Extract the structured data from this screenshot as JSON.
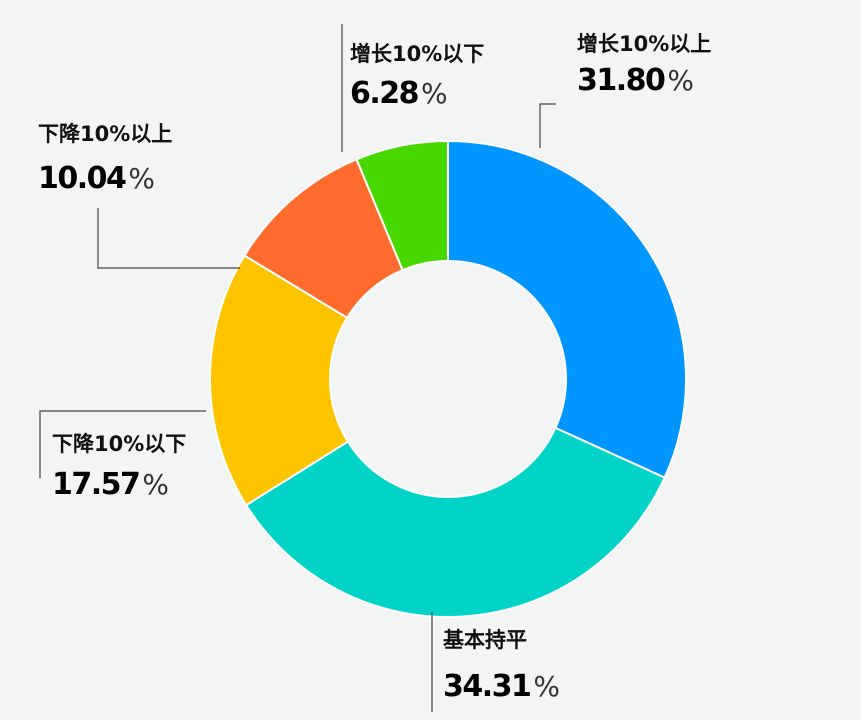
{
  "chart_data": {
    "type": "pie",
    "donut": true,
    "legend": "none",
    "slices": [
      {
        "label": "增长10%以上",
        "value": 31.8,
        "display_value": "31.80",
        "unit": "%",
        "color": "#0095ff"
      },
      {
        "label": "基本持平",
        "value": 34.31,
        "display_value": "34.31",
        "unit": "%",
        "color": "#00d4c9"
      },
      {
        "label": "下降10%以下",
        "value": 17.57,
        "display_value": "17.57",
        "unit": "%",
        "color": "#ffc400"
      },
      {
        "label": "下降10%以上",
        "value": 10.04,
        "display_value": "10.04",
        "unit": "%",
        "color": "#ff6b2c"
      },
      {
        "label": "增长10%以下",
        "value": 6.28,
        "display_value": "6.28",
        "unit": "%",
        "color": "#47d800"
      }
    ]
  }
}
